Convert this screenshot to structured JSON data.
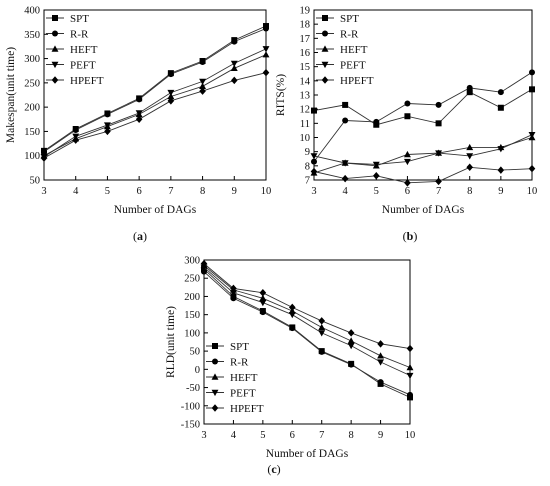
{
  "chart_data": [
    {
      "panel": "a",
      "type": "line",
      "xlabel": "Number of DAGs",
      "ylabel": "Makespan(unit time)",
      "x": [
        3,
        4,
        5,
        6,
        7,
        8,
        9,
        10
      ],
      "xlim": [
        3,
        10
      ],
      "ylim": [
        50,
        400
      ],
      "yticks": [
        50,
        100,
        150,
        200,
        250,
        300,
        350,
        400
      ],
      "legend_position": "top-left",
      "series": [
        {
          "name": "SPT",
          "marker": "square",
          "values": [
            110,
            155,
            187,
            218,
            270,
            295,
            338,
            367
          ]
        },
        {
          "name": "R-R",
          "marker": "circle",
          "values": [
            108,
            153,
            185,
            216,
            268,
            293,
            335,
            362
          ]
        },
        {
          "name": "HEFT",
          "marker": "triangle-up",
          "values": [
            100,
            135,
            160,
            185,
            222,
            243,
            280,
            308
          ]
        },
        {
          "name": "PEFT",
          "marker": "triangle-down",
          "values": [
            98,
            140,
            163,
            188,
            230,
            253,
            290,
            320
          ]
        },
        {
          "name": "HPEFT",
          "marker": "diamond",
          "values": [
            95,
            132,
            150,
            175,
            213,
            233,
            255,
            271
          ]
        }
      ]
    },
    {
      "panel": "b",
      "type": "line",
      "xlabel": "Number of DAGs",
      "ylabel": "RITS(%)",
      "x": [
        3,
        4,
        5,
        6,
        7,
        8,
        9,
        10
      ],
      "xlim": [
        3,
        10
      ],
      "ylim": [
        7,
        19
      ],
      "yticks": [
        7,
        8,
        9,
        10,
        11,
        12,
        13,
        14,
        15,
        16,
        17,
        18,
        19
      ],
      "legend_position": "top-left",
      "series": [
        {
          "name": "SPT",
          "marker": "square",
          "values": [
            11.9,
            12.3,
            10.9,
            11.5,
            11.0,
            13.2,
            12.1,
            13.4
          ]
        },
        {
          "name": "R-R",
          "marker": "circle",
          "values": [
            8.3,
            11.2,
            11.1,
            12.4,
            12.3,
            13.5,
            13.2,
            14.6
          ]
        },
        {
          "name": "HEFT",
          "marker": "triangle-up",
          "values": [
            7.5,
            8.2,
            8.0,
            8.8,
            8.9,
            9.3,
            9.3,
            10.0
          ]
        },
        {
          "name": "PEFT",
          "marker": "triangle-down",
          "values": [
            8.7,
            8.2,
            8.1,
            8.3,
            8.9,
            8.7,
            9.2,
            10.2
          ]
        },
        {
          "name": "HPEFT",
          "marker": "diamond",
          "values": [
            7.6,
            7.1,
            7.3,
            6.8,
            6.9,
            7.9,
            7.7,
            7.8
          ]
        }
      ]
    },
    {
      "panel": "c",
      "type": "line",
      "xlabel": "Number of DAGs",
      "ylabel": "RLD(unit time)",
      "x": [
        3,
        4,
        5,
        6,
        7,
        8,
        9,
        10
      ],
      "xlim": [
        3,
        10
      ],
      "ylim": [
        -150,
        300
      ],
      "yticks": [
        -150,
        -100,
        -50,
        0,
        50,
        100,
        150,
        200,
        250,
        300
      ],
      "legend_position": "bottom-left",
      "series": [
        {
          "name": "SPT",
          "marker": "square",
          "values": [
            275,
            200,
            160,
            115,
            50,
            15,
            -40,
            -77
          ]
        },
        {
          "name": "R-R",
          "marker": "circle",
          "values": [
            268,
            195,
            157,
            113,
            48,
            13,
            -35,
            -70
          ]
        },
        {
          "name": "HEFT",
          "marker": "triangle-up",
          "values": [
            285,
            218,
            195,
            160,
            115,
            78,
            37,
            5
          ]
        },
        {
          "name": "PEFT",
          "marker": "triangle-down",
          "values": [
            280,
            210,
            183,
            150,
            100,
            65,
            20,
            -17
          ]
        },
        {
          "name": "HPEFT",
          "marker": "diamond",
          "values": [
            290,
            222,
            210,
            170,
            133,
            100,
            70,
            57
          ]
        }
      ]
    }
  ],
  "panel_labels": [
    "(a)",
    "(b)",
    "(c)"
  ]
}
